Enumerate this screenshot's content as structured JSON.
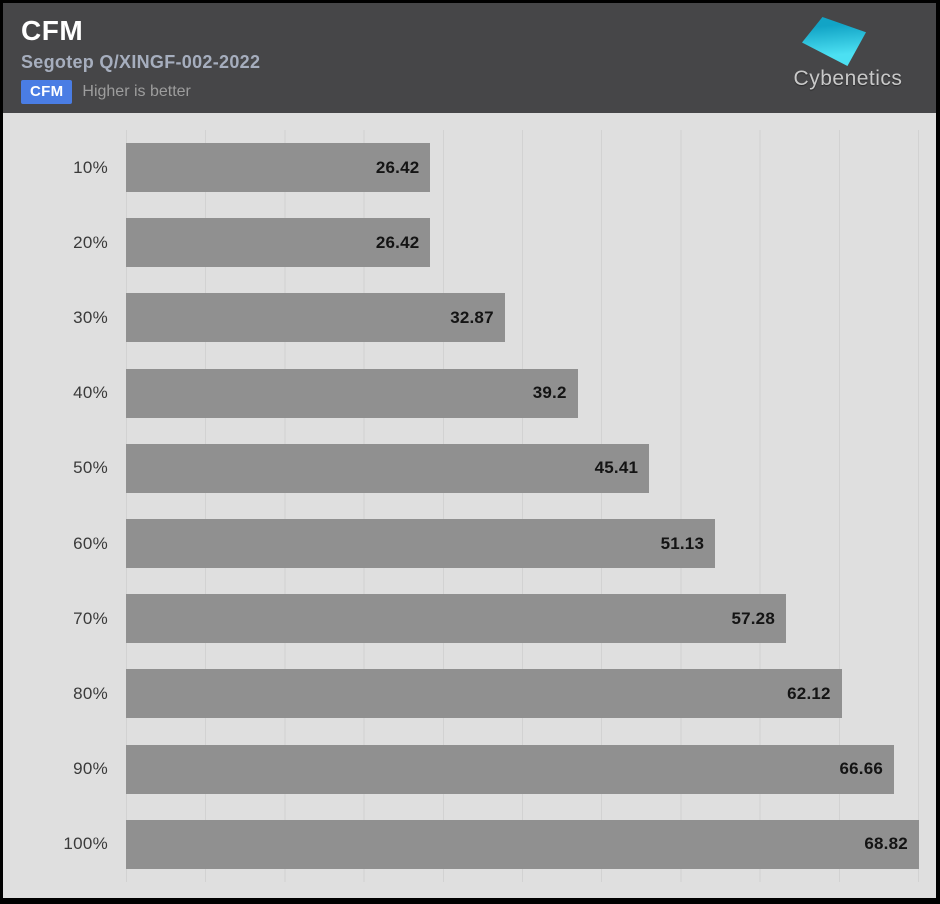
{
  "header": {
    "title": "CFM",
    "subtitle": "Segotep Q/XINGF-002-2022",
    "badge_label": "CFM",
    "badge_note": "Higher is better",
    "logo_text": "Cybenetics"
  },
  "colors": {
    "header_bg": "#464648",
    "chart_bg": "#dfdfdf",
    "bar": "#909090",
    "gridline": "#d2d2d2",
    "label_text": "#3a3a3a",
    "value_text": "#141414",
    "subtitle_text": "#a6aebe",
    "note_text": "#9d9d9d",
    "badge": "#4a7de4",
    "logo_cyan_1": "#12a4c6",
    "logo_cyan_2": "#4ce0f2"
  },
  "chart_data": {
    "type": "bar",
    "orientation": "horizontal",
    "title": "CFM",
    "subtitle": "Segotep Q/XINGF-002-2022",
    "note": "Higher is better",
    "categories": [
      "10%",
      "20%",
      "30%",
      "40%",
      "50%",
      "60%",
      "70%",
      "80%",
      "90%",
      "100%"
    ],
    "values": [
      26.42,
      26.42,
      32.87,
      39.2,
      45.41,
      51.13,
      57.28,
      62.12,
      66.66,
      68.82
    ],
    "xlabel": "",
    "ylabel": "",
    "xlim": [
      0,
      70.3
    ],
    "grid": "vertical",
    "value_labels": "inside-end",
    "legend": "none"
  }
}
